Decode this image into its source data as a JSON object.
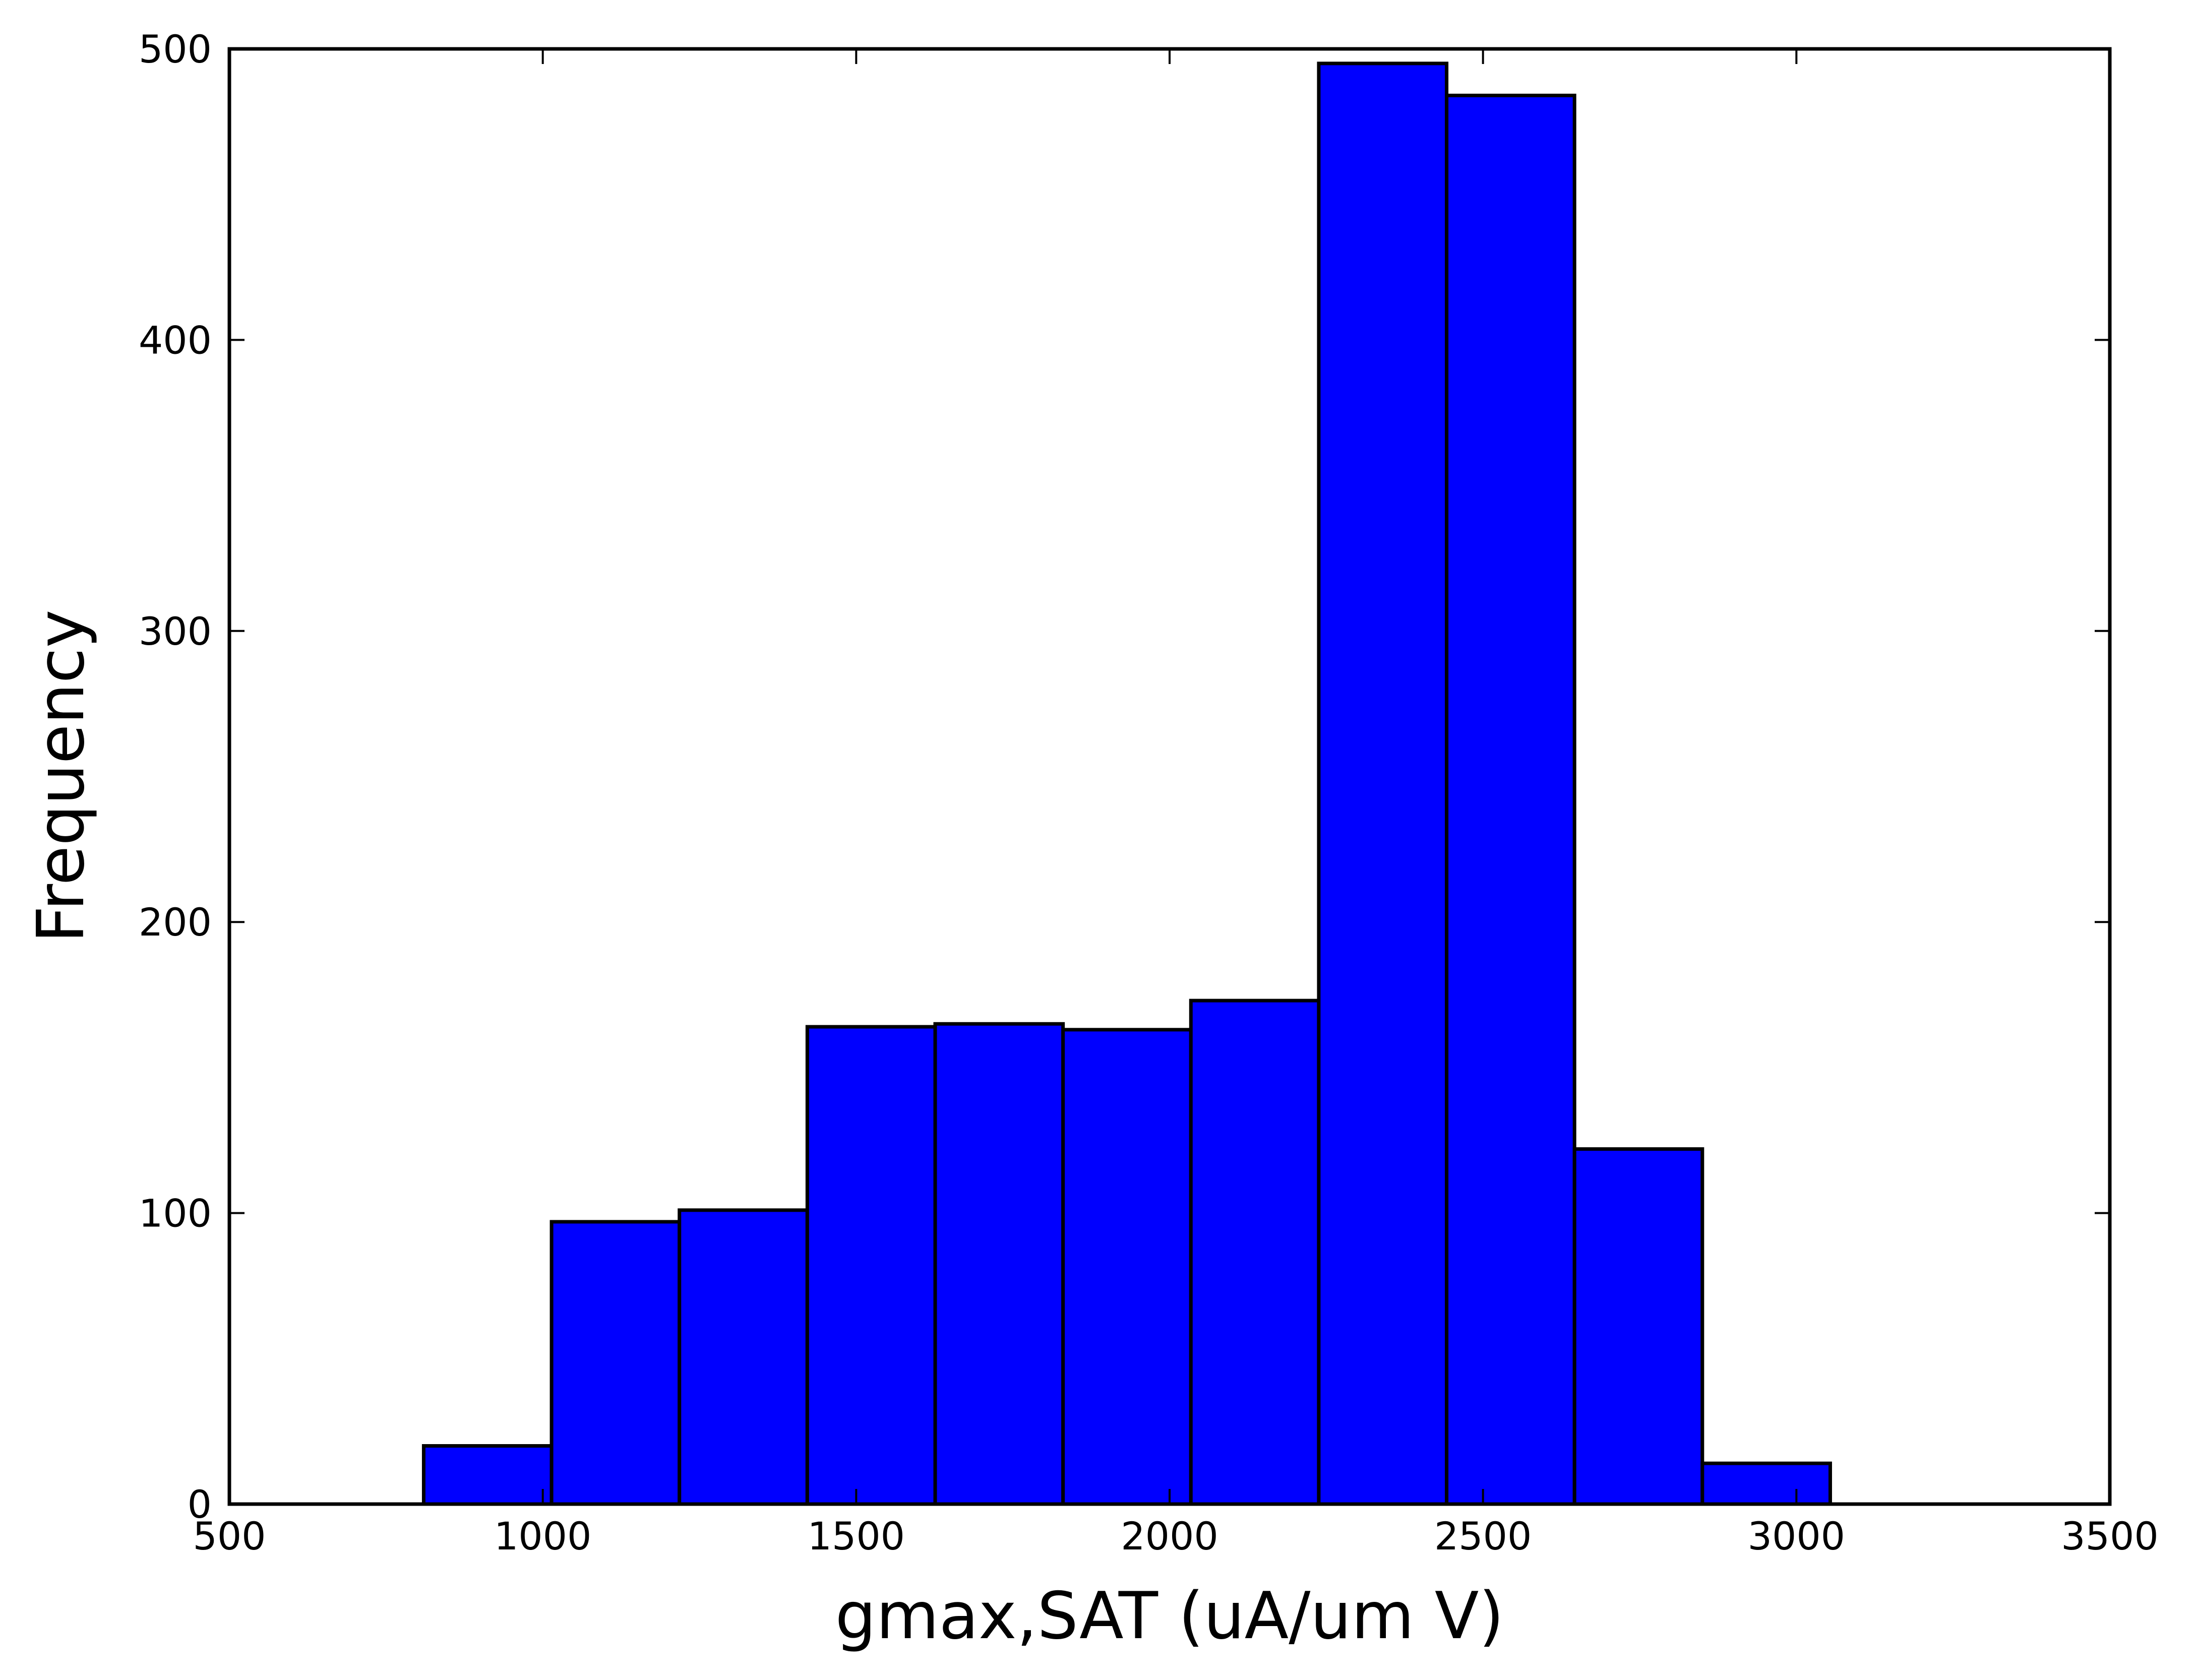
{
  "chart_data": {
    "type": "bar",
    "title": "",
    "xlabel": "gmax,SAT (uA/um V)",
    "ylabel": "Frequency",
    "xlim": [
      500,
      3500
    ],
    "ylim": [
      0,
      500
    ],
    "xticks": [
      "500",
      "1000",
      "1500",
      "2000",
      "2500",
      "3000",
      "3500"
    ],
    "yticks": [
      "0",
      "100",
      "200",
      "300",
      "400",
      "500"
    ],
    "grid": false,
    "bar_color": "#0000ff",
    "bins": [
      {
        "x0": 810,
        "x1": 1014,
        "value": 20
      },
      {
        "x0": 1014,
        "x1": 1218,
        "value": 97
      },
      {
        "x0": 1218,
        "x1": 1422,
        "value": 101
      },
      {
        "x0": 1422,
        "x1": 1626,
        "value": 164
      },
      {
        "x0": 1626,
        "x1": 1830,
        "value": 165
      },
      {
        "x0": 1830,
        "x1": 2034,
        "value": 163
      },
      {
        "x0": 2034,
        "x1": 2238,
        "value": 173
      },
      {
        "x0": 2238,
        "x1": 2442,
        "value": 495
      },
      {
        "x0": 2442,
        "x1": 2646,
        "value": 484
      },
      {
        "x0": 2646,
        "x1": 2850,
        "value": 122
      },
      {
        "x0": 2850,
        "x1": 3054,
        "value": 14
      }
    ]
  }
}
